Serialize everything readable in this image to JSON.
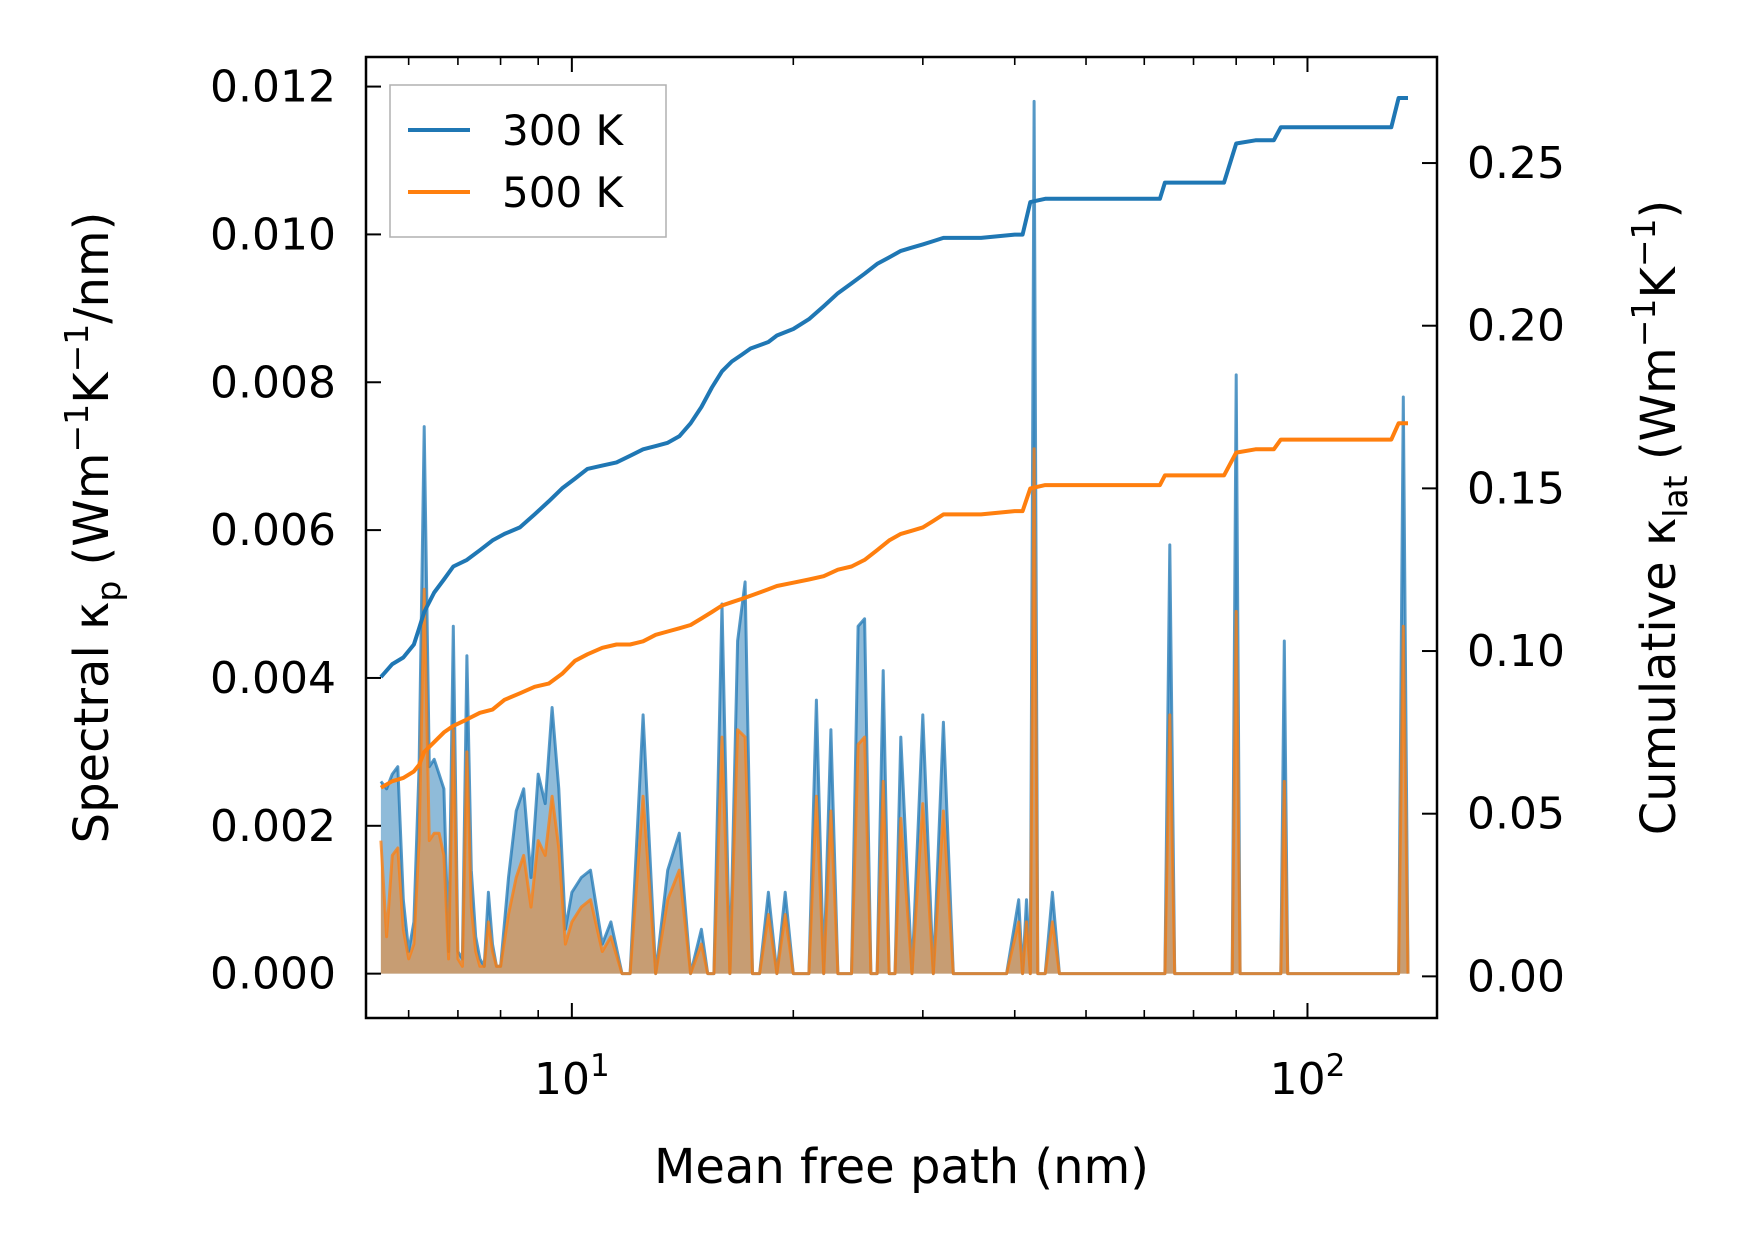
{
  "chart_data": {
    "type": "line",
    "xscale": "log",
    "xlim": [
      5.25,
      150
    ],
    "ylim_left": [
      -0.0006,
      0.0124
    ],
    "ylim_right": [
      -0.0128,
      0.2826
    ],
    "xlabel": "Mean free path (nm)",
    "ylabel_left": {
      "main": "Spectral κ",
      "sub": "p",
      "rest": " (Wm",
      "sup1": "−1",
      "mid": "K",
      "sup2": "−1",
      "end": "/nm)"
    },
    "ylabel_right": {
      "main": "Cumulative κ",
      "sub": "lat",
      "rest": " (Wm",
      "sup1": "−1",
      "mid": "K",
      "sup2": "−1",
      "end": ")"
    },
    "x_ticks": [
      {
        "value": 10,
        "base": "10",
        "exp": "1"
      },
      {
        "value": 100,
        "base": "10",
        "exp": "2"
      }
    ],
    "y_ticks_left": [
      0.0,
      0.002,
      0.004,
      0.006,
      0.008,
      0.01,
      0.012
    ],
    "y_ticks_left_labels": [
      "0.000",
      "0.002",
      "0.004",
      "0.006",
      "0.008",
      "0.010",
      "0.012"
    ],
    "y_ticks_right": [
      0.0,
      0.05,
      0.1,
      0.15,
      0.2,
      0.25
    ],
    "y_ticks_right_labels": [
      "0.00",
      "0.05",
      "0.10",
      "0.15",
      "0.20",
      "0.25"
    ],
    "legend": {
      "position": "upper-left",
      "entries": [
        {
          "label": "300 K",
          "color": "#1f77b4"
        },
        {
          "label": "500 K",
          "color": "#ff7f0e"
        }
      ]
    },
    "series": [
      {
        "name": "300 K spectral",
        "axis": "left",
        "style": "filled-line",
        "color": "#1f77b4",
        "x": [
          5.5,
          5.6,
          5.7,
          5.8,
          5.9,
          6.0,
          6.1,
          6.2,
          6.3,
          6.4,
          6.5,
          6.6,
          6.7,
          6.8,
          6.9,
          7.0,
          7.1,
          7.2,
          7.3,
          7.4,
          7.5,
          7.6,
          7.7,
          7.8,
          7.9,
          8.0,
          8.2,
          8.4,
          8.6,
          8.8,
          9.0,
          9.2,
          9.4,
          9.6,
          9.8,
          10.0,
          10.3,
          10.6,
          11.0,
          11.3,
          11.7,
          12.0,
          12.5,
          13.0,
          13.5,
          14.0,
          14.5,
          15.0,
          15.3,
          15.6,
          16.0,
          16.4,
          16.8,
          17.2,
          17.6,
          18.0,
          18.5,
          19.0,
          19.5,
          20.0,
          20.5,
          21.0,
          21.5,
          22.0,
          22.5,
          23.0,
          23.5,
          24.0,
          24.5,
          25.0,
          25.5,
          26.0,
          26.5,
          27.0,
          27.5,
          28.0,
          29.0,
          30.0,
          31.0,
          32.0,
          33.0,
          34.0,
          35.0,
          37.0,
          39.0,
          40.5,
          41.0,
          41.5,
          42.0,
          42.5,
          43.0,
          44.0,
          45.0,
          46.0,
          48.0,
          55.0,
          62.0,
          64.0,
          65.0,
          66.0,
          70.0,
          77.0,
          79.0,
          80.0,
          81.0,
          85.0,
          90.0,
          92.0,
          93.0,
          94.0,
          100.0,
          110.0,
          125.0,
          133.0,
          135.0,
          137.0
        ],
        "y": [
          0.0026,
          0.0025,
          0.0027,
          0.0028,
          0.001,
          0.0003,
          0.0007,
          0.0028,
          0.0074,
          0.0028,
          0.0029,
          0.0027,
          0.0025,
          0.0003,
          0.0047,
          0.0003,
          0.0002,
          0.0043,
          0.0014,
          0.0005,
          0.0002,
          0.0001,
          0.0011,
          0.0004,
          0.0001,
          0.0001,
          0.0013,
          0.0022,
          0.0025,
          0.0013,
          0.0027,
          0.0023,
          0.0036,
          0.0025,
          0.0006,
          0.0011,
          0.0013,
          0.0014,
          0.0004,
          0.0007,
          0.0,
          0.0,
          0.0035,
          0.0,
          0.0014,
          0.0019,
          0.0,
          0.0006,
          0.0,
          0.0,
          0.005,
          0.0,
          0.0045,
          0.0053,
          0.0,
          0.0,
          0.0011,
          0.0,
          0.0011,
          0.0,
          0.0,
          0.0,
          0.0037,
          0.0,
          0.0033,
          0.0,
          0.0,
          0.0,
          0.0047,
          0.0048,
          0.0,
          0.0,
          0.0041,
          0.0,
          0.0,
          0.0032,
          0.0,
          0.0035,
          0.0,
          0.0034,
          0.0,
          0.0,
          0.0,
          0.0,
          0.0,
          0.001,
          0.0,
          0.001,
          0.0,
          0.0118,
          0.0,
          0.0,
          0.0011,
          0.0,
          0.0,
          0.0,
          0.0,
          0.0,
          0.0058,
          0.0,
          0.0,
          0.0,
          0.0,
          0.0081,
          0.0,
          0.0,
          0.0,
          0.0,
          0.0045,
          0.0,
          0.0,
          0.0,
          0.0,
          0.0,
          0.0078,
          0.0
        ]
      },
      {
        "name": "500 K spectral",
        "axis": "left",
        "style": "filled-line",
        "color": "#ff7f0e",
        "x": [
          5.5,
          5.6,
          5.7,
          5.8,
          5.9,
          6.0,
          6.1,
          6.2,
          6.3,
          6.4,
          6.5,
          6.6,
          6.7,
          6.8,
          6.9,
          7.0,
          7.1,
          7.2,
          7.3,
          7.4,
          7.5,
          7.6,
          7.7,
          7.8,
          7.9,
          8.0,
          8.2,
          8.4,
          8.6,
          8.8,
          9.0,
          9.2,
          9.4,
          9.6,
          9.8,
          10.0,
          10.3,
          10.6,
          11.0,
          11.3,
          11.7,
          12.0,
          12.5,
          13.0,
          13.5,
          14.0,
          14.5,
          15.0,
          15.3,
          15.6,
          16.0,
          16.4,
          16.8,
          17.2,
          17.6,
          18.0,
          18.5,
          19.0,
          19.5,
          20.0,
          20.5,
          21.0,
          21.5,
          22.0,
          22.5,
          23.0,
          23.5,
          24.0,
          24.5,
          25.0,
          25.5,
          26.0,
          26.5,
          27.0,
          27.5,
          28.0,
          29.0,
          30.0,
          31.0,
          32.0,
          33.0,
          34.0,
          35.0,
          37.0,
          39.0,
          40.5,
          41.0,
          41.5,
          42.0,
          42.5,
          43.0,
          44.0,
          45.0,
          46.0,
          48.0,
          55.0,
          62.0,
          64.0,
          65.0,
          66.0,
          70.0,
          77.0,
          79.0,
          80.0,
          81.0,
          85.0,
          90.0,
          92.0,
          93.0,
          94.0,
          100.0,
          110.0,
          125.0,
          133.0,
          135.0,
          137.0
        ],
        "y": [
          0.0018,
          0.0005,
          0.0016,
          0.0017,
          0.0006,
          0.0002,
          0.0004,
          0.0018,
          0.0052,
          0.0018,
          0.0019,
          0.0019,
          0.0016,
          0.0002,
          0.0033,
          0.0002,
          0.0001,
          0.003,
          0.0009,
          0.0003,
          0.0001,
          0.0001,
          0.0007,
          0.0003,
          0.0001,
          0.0001,
          0.0008,
          0.0013,
          0.0016,
          0.0009,
          0.0018,
          0.0016,
          0.0024,
          0.0017,
          0.0004,
          0.0007,
          0.0009,
          0.001,
          0.0003,
          0.0005,
          0.0,
          0.0,
          0.0024,
          0.0,
          0.001,
          0.0014,
          0.0,
          0.0004,
          0.0,
          0.0,
          0.0032,
          0.0,
          0.0033,
          0.0032,
          0.0,
          0.0,
          0.0008,
          0.0,
          0.0008,
          0.0,
          0.0,
          0.0,
          0.0024,
          0.0,
          0.0022,
          0.0,
          0.0,
          0.0,
          0.0031,
          0.0032,
          0.0,
          0.0,
          0.0026,
          0.0,
          0.0,
          0.0021,
          0.0,
          0.0023,
          0.0,
          0.0022,
          0.0,
          0.0,
          0.0,
          0.0,
          0.0,
          0.0007,
          0.0,
          0.0007,
          0.0,
          0.0071,
          0.0,
          0.0,
          0.0007,
          0.0,
          0.0,
          0.0,
          0.0,
          0.0,
          0.0035,
          0.0,
          0.0,
          0.0,
          0.0,
          0.0049,
          0.0,
          0.0,
          0.0,
          0.0,
          0.0026,
          0.0,
          0.0,
          0.0,
          0.0,
          0.0,
          0.0047,
          0.0
        ]
      },
      {
        "name": "300 K",
        "axis": "right",
        "style": "line",
        "color": "#1f77b4",
        "x": [
          5.5,
          5.7,
          5.9,
          6.1,
          6.2,
          6.3,
          6.5,
          6.7,
          6.9,
          7.2,
          7.5,
          7.8,
          8.1,
          8.5,
          8.9,
          9.3,
          9.7,
          10.1,
          10.5,
          11.0,
          11.5,
          12.0,
          12.5,
          13.0,
          13.5,
          14.0,
          14.5,
          15.0,
          15.5,
          16.0,
          16.5,
          17.0,
          17.5,
          18.0,
          18.5,
          19.0,
          20.0,
          21.0,
          22.0,
          23.0,
          24.0,
          25.0,
          26.0,
          27.0,
          28.0,
          29.0,
          30.0,
          31.0,
          32.0,
          34.0,
          36.0,
          40.0,
          41.0,
          42.0,
          44.0,
          46.0,
          55.0,
          63.0,
          64.0,
          70.0,
          77.0,
          80.0,
          85.0,
          90.0,
          92.0,
          110.0,
          130.0,
          133.0,
          137.0
        ],
        "y": [
          0.092,
          0.096,
          0.098,
          0.102,
          0.107,
          0.112,
          0.118,
          0.122,
          0.126,
          0.128,
          0.131,
          0.134,
          0.136,
          0.138,
          0.142,
          0.146,
          0.15,
          0.153,
          0.156,
          0.157,
          0.158,
          0.16,
          0.162,
          0.163,
          0.164,
          0.166,
          0.17,
          0.175,
          0.181,
          0.186,
          0.189,
          0.191,
          0.193,
          0.194,
          0.195,
          0.197,
          0.199,
          0.202,
          0.206,
          0.21,
          0.213,
          0.216,
          0.219,
          0.221,
          0.223,
          0.224,
          0.225,
          0.226,
          0.227,
          0.227,
          0.227,
          0.228,
          0.228,
          0.238,
          0.239,
          0.239,
          0.239,
          0.239,
          0.244,
          0.244,
          0.244,
          0.256,
          0.257,
          0.257,
          0.261,
          0.261,
          0.261,
          0.27,
          0.27
        ]
      },
      {
        "name": "500 K",
        "axis": "right",
        "style": "line",
        "color": "#ff7f0e",
        "x": [
          5.5,
          5.7,
          5.9,
          6.1,
          6.2,
          6.3,
          6.5,
          6.7,
          6.9,
          7.2,
          7.5,
          7.8,
          8.1,
          8.5,
          8.9,
          9.3,
          9.7,
          10.1,
          10.5,
          11.0,
          11.5,
          12.0,
          12.5,
          13.0,
          13.5,
          14.0,
          14.5,
          15.0,
          15.5,
          16.0,
          16.5,
          17.0,
          17.5,
          18.0,
          18.5,
          19.0,
          20.0,
          21.0,
          22.0,
          23.0,
          24.0,
          25.0,
          26.0,
          27.0,
          28.0,
          29.0,
          30.0,
          31.0,
          32.0,
          34.0,
          36.0,
          40.0,
          41.0,
          42.0,
          44.0,
          46.0,
          55.0,
          63.0,
          64.0,
          70.0,
          77.0,
          80.0,
          85.0,
          90.0,
          92.0,
          110.0,
          130.0,
          133.0,
          137.0
        ],
        "y": [
          0.058,
          0.06,
          0.061,
          0.063,
          0.065,
          0.069,
          0.072,
          0.075,
          0.077,
          0.079,
          0.081,
          0.082,
          0.085,
          0.087,
          0.089,
          0.09,
          0.093,
          0.097,
          0.099,
          0.101,
          0.102,
          0.102,
          0.103,
          0.105,
          0.106,
          0.107,
          0.108,
          0.11,
          0.112,
          0.114,
          0.115,
          0.116,
          0.117,
          0.118,
          0.119,
          0.12,
          0.121,
          0.122,
          0.123,
          0.125,
          0.126,
          0.128,
          0.131,
          0.134,
          0.136,
          0.137,
          0.138,
          0.14,
          0.142,
          0.142,
          0.142,
          0.143,
          0.143,
          0.15,
          0.151,
          0.151,
          0.151,
          0.151,
          0.154,
          0.154,
          0.154,
          0.161,
          0.162,
          0.162,
          0.165,
          0.165,
          0.165,
          0.17,
          0.17
        ]
      }
    ]
  }
}
